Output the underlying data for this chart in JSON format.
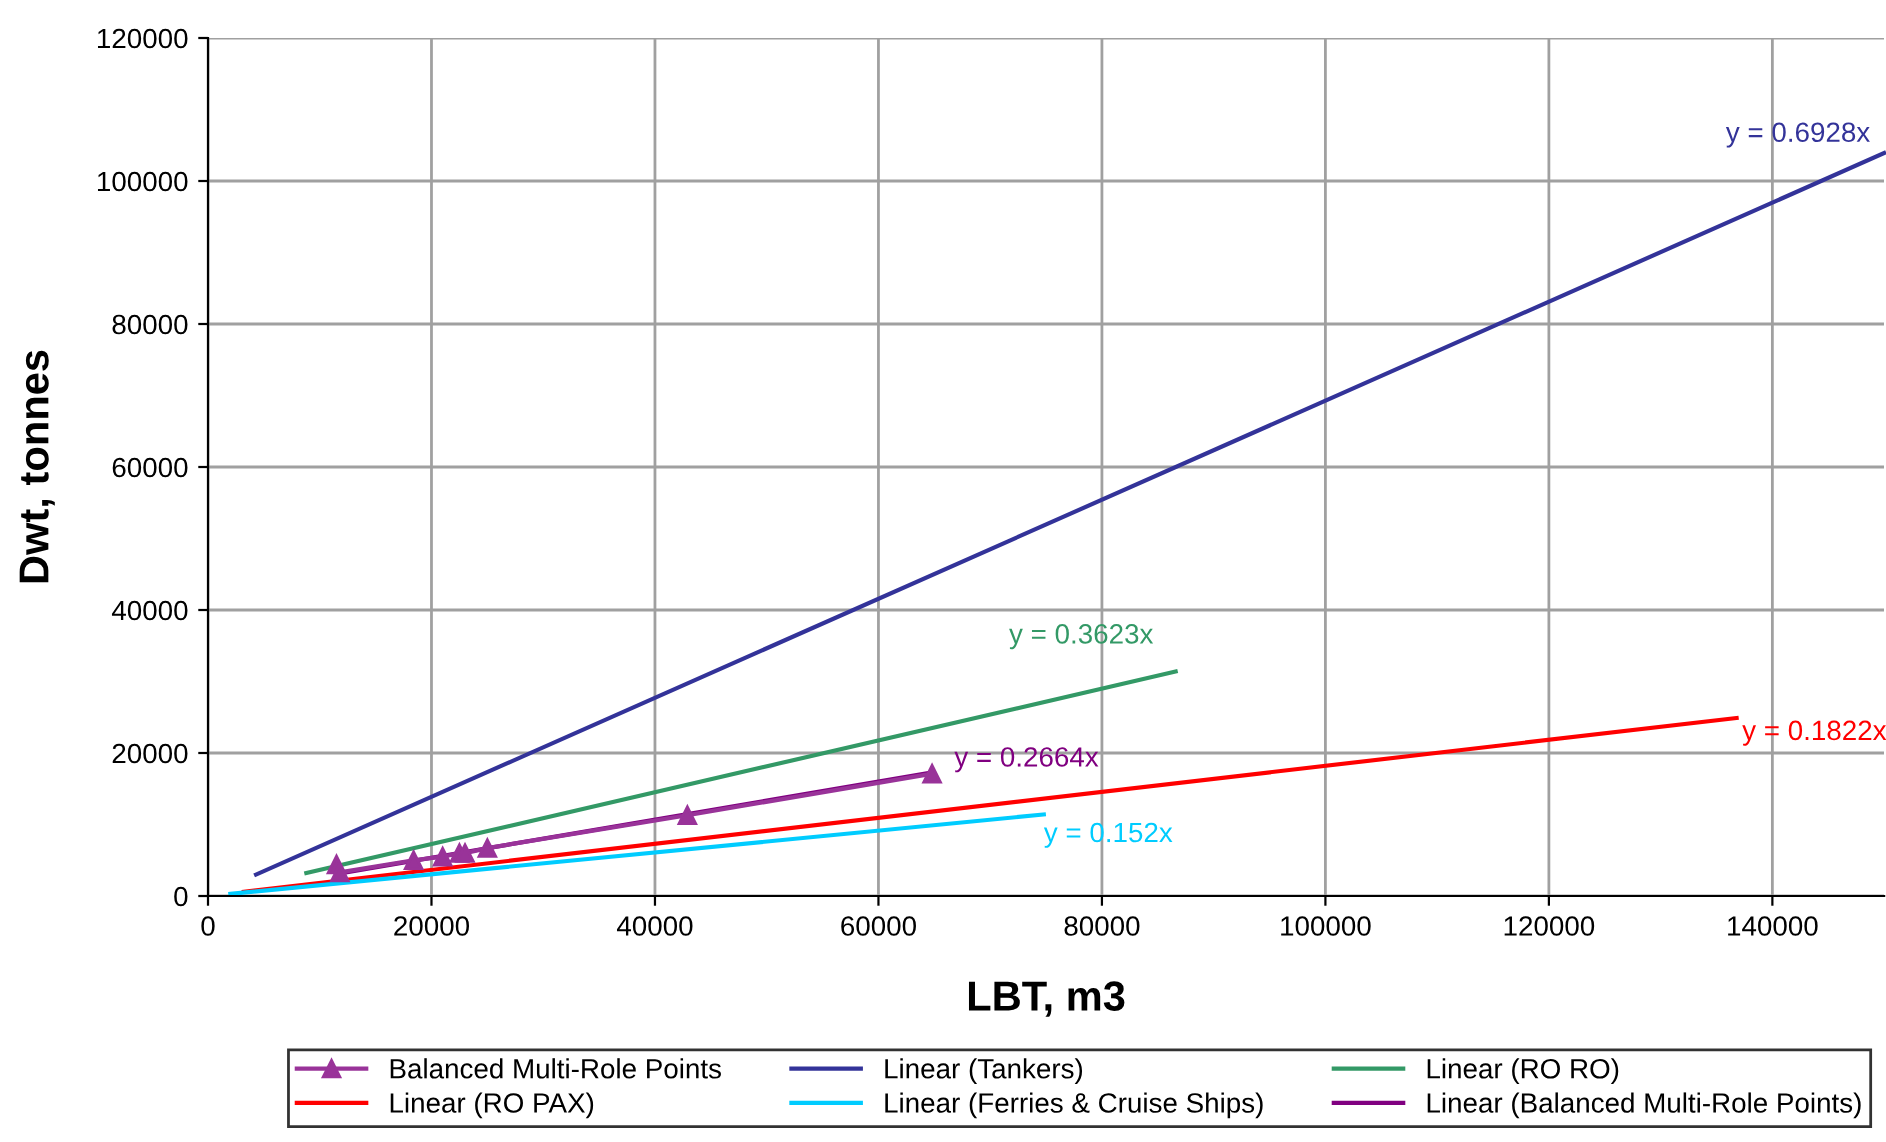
{
  "chart_data": {
    "type": "line",
    "xlabel": "LBT, m3",
    "ylabel": "Dwt, tonnes",
    "xlim": [
      0,
      150000
    ],
    "xticks": [
      0,
      20000,
      40000,
      60000,
      80000,
      100000,
      120000,
      140000
    ],
    "ylim": [
      0,
      120000
    ],
    "yticks": [
      0,
      20000,
      40000,
      60000,
      80000,
      100000,
      120000
    ],
    "grid": true,
    "legend": "bottom",
    "series": [
      {
        "name": "Balanced Multi-Role Points",
        "marker": "triangle",
        "color": "#993399",
        "x": [
          11500,
          11800,
          18400,
          21000,
          22500,
          23000,
          25000,
          42900,
          64800
        ],
        "values": [
          4400,
          3300,
          5000,
          5500,
          6000,
          6000,
          6700,
          11300,
          17100
        ]
      },
      {
        "name": "Linear (Tankers)",
        "color": "#333399",
        "x": [
          4300,
          150000
        ],
        "values": [
          3000,
          103900
        ]
      },
      {
        "name": "Linear (RO RO)",
        "color": "#339966",
        "x": [
          8800,
          86600
        ],
        "values": [
          3200,
          31400
        ]
      },
      {
        "name": "Linear (RO PAX)",
        "color": "#ff0000",
        "x": [
          3200,
          136800
        ],
        "values": [
          600,
          24900
        ]
      },
      {
        "name": "Linear (Ferries & Cruise Ships)",
        "color": "#00ccff",
        "x": [
          2000,
          74800
        ],
        "values": [
          300,
          11400
        ]
      },
      {
        "name": "Linear (Balanced Multi-Role Points)",
        "color": "#800080",
        "x": [
          11600,
          64800
        ],
        "values": [
          3100,
          17300
        ]
      }
    ],
    "annotations": [
      "y = 0.6928x",
      "y = 0.3623x",
      "y = 0.1822x",
      "y = 0.152x",
      "y = 0.2664x"
    ]
  }
}
